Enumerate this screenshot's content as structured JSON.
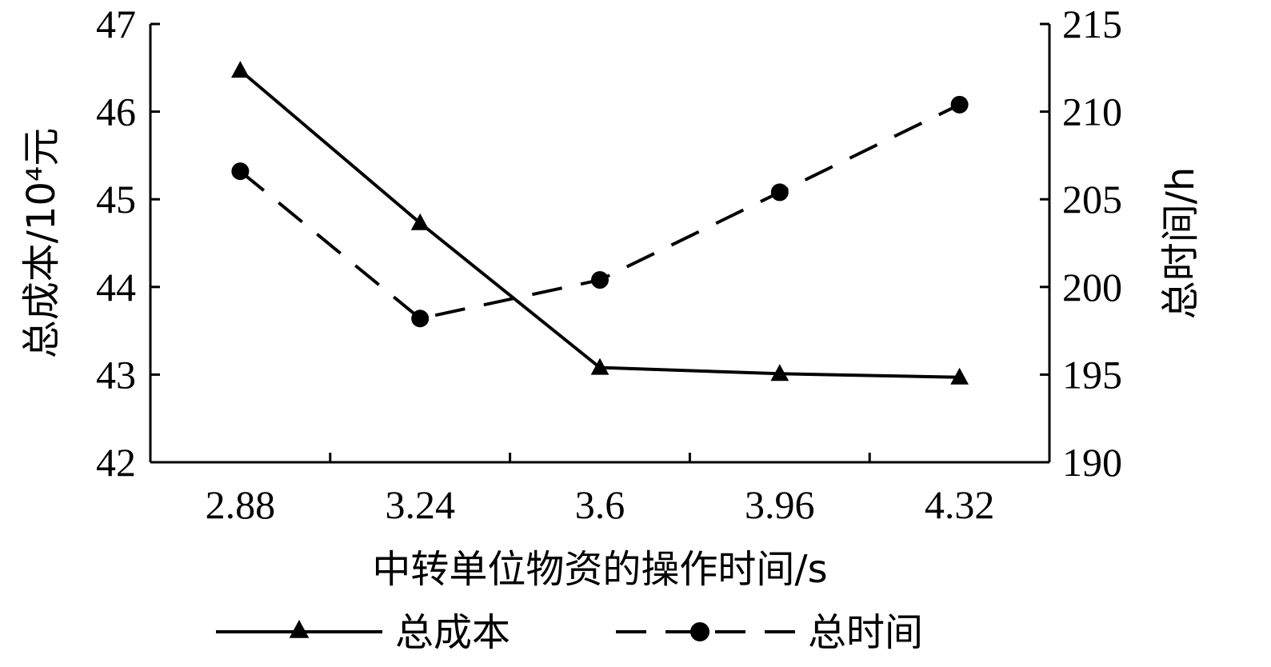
{
  "chart_data": {
    "type": "line",
    "xlabel": "中转单位物资的操作时间/s",
    "ylabel_left": "总成本/10⁴元",
    "ylabel_right": "总时间/h",
    "categories": [
      "2.88",
      "3.24",
      "3.6",
      "3.96",
      "4.32"
    ],
    "y_left_lim": [
      42,
      47
    ],
    "y_left_ticks": [
      "42",
      "43",
      "44",
      "45",
      "46",
      "47"
    ],
    "y_right_lim": [
      190,
      215
    ],
    "y_right_ticks": [
      "190",
      "195",
      "200",
      "205",
      "210",
      "215"
    ],
    "series": [
      {
        "name": "总成本",
        "axis": "left",
        "style": "solid",
        "marker": "triangle",
        "color": "#000000",
        "values": [
          46.47,
          44.73,
          43.08,
          43.01,
          42.97
        ]
      },
      {
        "name": "总时间",
        "axis": "right",
        "style": "dashed",
        "marker": "circle",
        "color": "#000000",
        "values": [
          206.6,
          198.2,
          200.4,
          205.4,
          210.4
        ]
      }
    ],
    "grid": false,
    "legend_position": "bottom"
  }
}
